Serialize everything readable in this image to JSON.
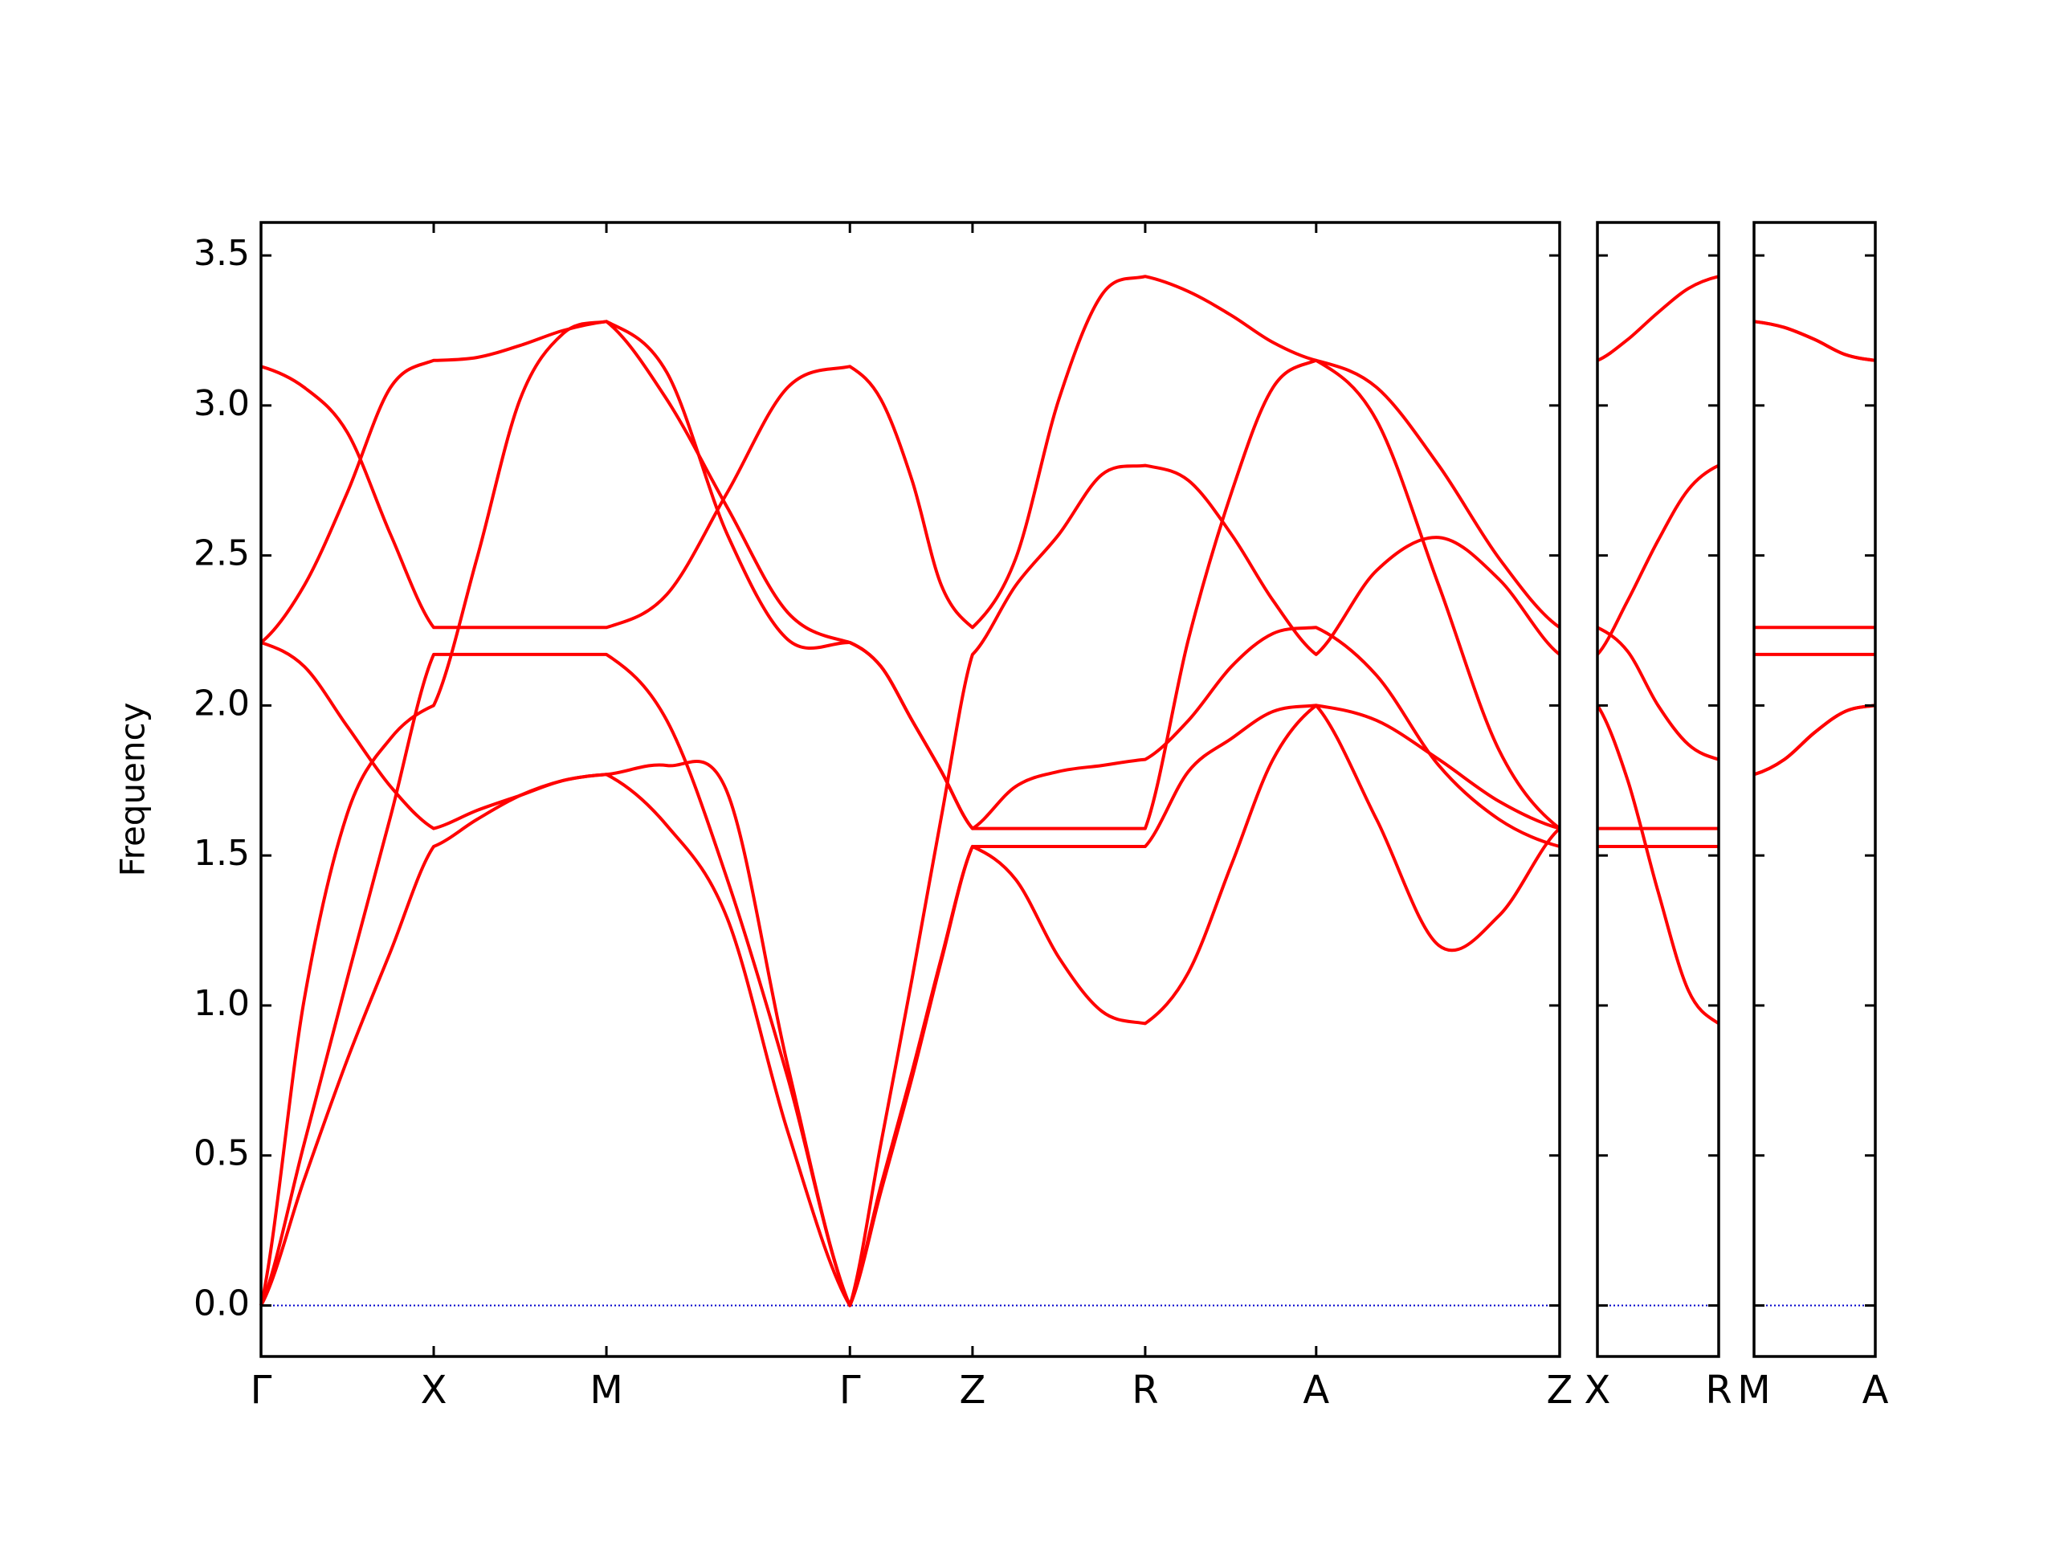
{
  "chart_data": [
    {
      "type": "line",
      "ylabel": "Frequency",
      "ytick_labels": true,
      "x": [
        0,
        0.25,
        0.5,
        0.75,
        1,
        1.25,
        1.5,
        1.75,
        2,
        2.35,
        2.7,
        3.05,
        3.41,
        3.59,
        3.77,
        3.94,
        4.12,
        4.37,
        4.62,
        4.87,
        5.12,
        5.37,
        5.62,
        5.86,
        6.11,
        6.46,
        6.82,
        7.17,
        7.52
      ],
      "series": [
        {
          "color": "#ff0000",
          "values": [
            3.13,
            3.06,
            2.91,
            2.57,
            2.26,
            2.26,
            2.26,
            2.26,
            2.26,
            2.37,
            2.71,
            3.06,
            3.13,
            3.02,
            2.75,
            2.4,
            2.26,
            2.49,
            3.02,
            3.37,
            3.43,
            3.38,
            3.3,
            3.21,
            3.15,
            3.06,
            2.8,
            2.49,
            2.26
          ]
        },
        {
          "color": "#ff0000",
          "values": [
            2.21,
            2.4,
            2.71,
            3.06,
            3.15,
            3.16,
            3.2,
            3.25,
            3.28,
            3.11,
            2.57,
            2.22,
            2.21,
            2.13,
            1.95,
            1.78,
            1.59,
            1.73,
            1.78,
            1.8,
            1.82,
            1.95,
            2.13,
            2.24,
            2.26,
            2.1,
            1.8,
            1.62,
            1.53
          ]
        },
        {
          "color": "#ff0000",
          "values": [
            2.21,
            2.13,
            1.93,
            1.73,
            1.59,
            1.65,
            1.7,
            1.75,
            1.77,
            1.6,
            1.29,
            0.58,
            0,
            0.4,
            0.78,
            1.16,
            1.53,
            1.42,
            1.16,
            0.98,
            0.94,
            1.11,
            1.47,
            1.82,
            2.0,
            1.62,
            1.2,
            1.3,
            1.59
          ]
        },
        {
          "color": "#ff0000",
          "values": [
            0,
            1.02,
            1.64,
            1.89,
            2.0,
            2.49,
            3.02,
            3.24,
            3.28,
            3.02,
            2.66,
            2.31,
            2.21,
            2.13,
            1.95,
            1.78,
            1.59,
            1.59,
            1.59,
            1.59,
            1.59,
            2.22,
            2.71,
            3.06,
            3.15,
            2.95,
            2.4,
            1.85,
            1.59
          ]
        },
        {
          "color": "#ff0000",
          "values": [
            0,
            0.54,
            1.09,
            1.63,
            2.17,
            2.17,
            2.17,
            2.17,
            2.17,
            1.95,
            1.42,
            0.76,
            0,
            0.54,
            1.09,
            1.63,
            2.17,
            2.4,
            2.57,
            2.77,
            2.8,
            2.75,
            2.57,
            2.35,
            2.17,
            2.45,
            2.56,
            2.42,
            2.17
          ]
        },
        {
          "color": "#ff0000",
          "values": [
            0,
            0.42,
            0.82,
            1.18,
            1.53,
            1.62,
            1.7,
            1.75,
            1.77,
            1.8,
            1.71,
            0.8,
            0,
            0.38,
            0.76,
            1.15,
            1.53,
            1.53,
            1.53,
            1.53,
            1.53,
            1.78,
            1.89,
            1.98,
            2.0,
            1.95,
            1.82,
            1.68,
            1.59
          ]
        }
      ],
      "xlim": [
        0,
        7.52
      ],
      "xticks": [
        {
          "value": 0,
          "label": "Γ"
        },
        {
          "value": 1,
          "label": "X"
        },
        {
          "value": 2,
          "label": "M"
        },
        {
          "value": 3.41,
          "label": "Γ"
        },
        {
          "value": 4.12,
          "label": "Z"
        },
        {
          "value": 5.12,
          "label": "R"
        },
        {
          "value": 6.11,
          "label": "A"
        },
        {
          "value": 7.52,
          "label": "Z"
        }
      ],
      "ylim": [
        -0.17,
        3.61
      ],
      "yticks": [
        {
          "value": 0,
          "label": "0.0"
        },
        0.5,
        {
          "value": 1,
          "label": "1.0"
        },
        1.5,
        {
          "value": 2,
          "label": "2.0"
        },
        2.5,
        {
          "value": 3,
          "label": "3.0"
        },
        3.5
      ],
      "hline": 0,
      "hline_color": "#0000cc"
    },
    {
      "type": "line",
      "ytick_labels": false,
      "x": [
        0,
        0.175,
        0.35,
        0.525,
        0.7
      ],
      "series": [
        {
          "color": "#ff0000",
          "values": [
            3.15,
            3.22,
            3.31,
            3.39,
            3.43
          ]
        },
        {
          "color": "#ff0000",
          "values": [
            2.17,
            2.35,
            2.55,
            2.72,
            2.8
          ]
        },
        {
          "color": "#ff0000",
          "values": [
            2.26,
            2.18,
            2.0,
            1.87,
            1.82
          ]
        },
        {
          "color": "#ff0000",
          "values": [
            1.59,
            1.59,
            1.59,
            1.59,
            1.59
          ]
        },
        {
          "color": "#ff0000",
          "values": [
            1.53,
            1.53,
            1.53,
            1.53,
            1.53
          ]
        },
        {
          "color": "#ff0000",
          "values": [
            2.0,
            1.75,
            1.38,
            1.05,
            0.94
          ]
        }
      ],
      "xlim": [
        0,
        0.7
      ],
      "xticks": [
        {
          "value": 0,
          "label": "X"
        },
        {
          "value": 0.7,
          "label": "R"
        }
      ],
      "ylim": [
        -0.17,
        3.61
      ],
      "yticks": [
        0,
        0.5,
        1,
        1.5,
        2,
        2.5,
        3,
        3.5
      ],
      "hline": 0,
      "hline_color": "#0000cc"
    },
    {
      "type": "line",
      "ytick_labels": false,
      "x": [
        0,
        0.175,
        0.35,
        0.525,
        0.7
      ],
      "series": [
        {
          "color": "#ff0000",
          "values": [
            3.28,
            3.26,
            3.22,
            3.17,
            3.15
          ]
        },
        {
          "color": "#ff0000",
          "values": [
            3.28,
            3.26,
            3.22,
            3.17,
            3.15
          ]
        },
        {
          "color": "#ff0000",
          "values": [
            2.26,
            2.26,
            2.26,
            2.26,
            2.26
          ]
        },
        {
          "color": "#ff0000",
          "values": [
            2.17,
            2.17,
            2.17,
            2.17,
            2.17
          ]
        },
        {
          "color": "#ff0000",
          "values": [
            1.77,
            1.82,
            1.91,
            1.98,
            2.0
          ]
        },
        {
          "color": "#ff0000",
          "values": [
            1.77,
            1.82,
            1.91,
            1.98,
            2.0
          ]
        }
      ],
      "xlim": [
        0,
        0.7
      ],
      "xticks": [
        {
          "value": 0,
          "label": "M"
        },
        {
          "value": 0.7,
          "label": "A"
        }
      ],
      "ylim": [
        -0.17,
        3.61
      ],
      "yticks": [
        0,
        0.5,
        1,
        1.5,
        2,
        2.5,
        3,
        3.5
      ],
      "hline": 0,
      "hline_color": "#0000cc"
    }
  ]
}
